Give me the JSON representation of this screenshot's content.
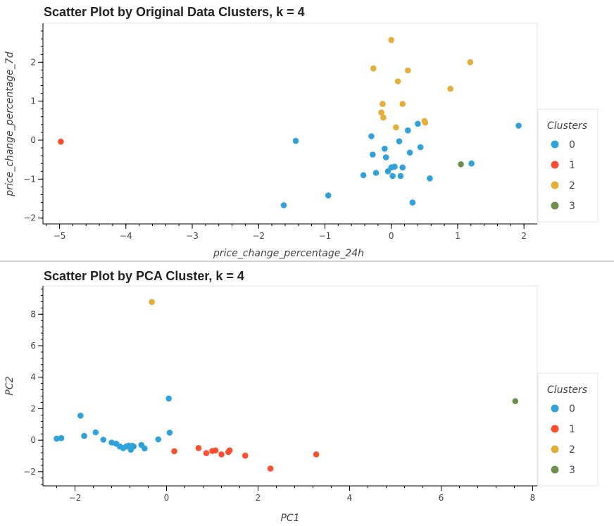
{
  "chart_data": [
    {
      "type": "scatter",
      "title": "Scatter Plot by Original Data Clusters, k = 4",
      "xlabel": "price_change_percentage_24h",
      "ylabel": "price_change_percentage_7d",
      "xlim": [
        -5.25,
        2.2
      ],
      "ylim": [
        -2.15,
        3.0
      ],
      "xticks": [
        -5,
        -4,
        -3,
        -2,
        -1,
        0,
        1,
        2
      ],
      "yticks": [
        -2,
        -1,
        0,
        1,
        2
      ],
      "grid": false,
      "legend": {
        "title": "Clusters",
        "placement": "right"
      },
      "series": [
        {
          "name": "0",
          "color": "#30a2da",
          "points": [
            [
              -1.62,
              -1.67
            ],
            [
              -1.44,
              -0.02
            ],
            [
              -0.95,
              -1.42
            ],
            [
              -0.42,
              -0.9
            ],
            [
              -0.3,
              0.1
            ],
            [
              -0.28,
              -0.37
            ],
            [
              -0.23,
              -0.84
            ],
            [
              -0.1,
              -0.22
            ],
            [
              -0.08,
              -0.44
            ],
            [
              -0.05,
              -0.8
            ],
            [
              0.0,
              -0.7
            ],
            [
              0.02,
              -0.92
            ],
            [
              0.05,
              -0.68
            ],
            [
              0.12,
              -0.03
            ],
            [
              0.14,
              -0.92
            ],
            [
              0.17,
              -0.7
            ],
            [
              0.25,
              0.25
            ],
            [
              0.28,
              -0.32
            ],
            [
              0.32,
              -1.6
            ],
            [
              0.4,
              0.42
            ],
            [
              0.44,
              -0.18
            ],
            [
              0.58,
              -0.98
            ],
            [
              1.21,
              -0.6
            ],
            [
              1.92,
              0.37
            ]
          ]
        },
        {
          "name": "1",
          "color": "#fc4f30",
          "points": [
            [
              -4.98,
              -0.04
            ]
          ]
        },
        {
          "name": "2",
          "color": "#e5ae38",
          "points": [
            [
              -0.27,
              1.84
            ],
            [
              -0.15,
              0.71
            ],
            [
              -0.13,
              0.93
            ],
            [
              -0.12,
              0.58
            ],
            [
              0.0,
              2.57
            ],
            [
              0.07,
              0.33
            ],
            [
              0.1,
              1.51
            ],
            [
              0.17,
              0.93
            ],
            [
              0.25,
              1.79
            ],
            [
              0.5,
              0.49
            ],
            [
              0.51,
              0.45
            ],
            [
              0.89,
              1.32
            ],
            [
              1.19,
              2.0
            ]
          ]
        },
        {
          "name": "3",
          "color": "#6d904f",
          "points": [
            [
              1.05,
              -0.62
            ]
          ]
        }
      ]
    },
    {
      "type": "scatter",
      "title": "Scatter Plot by PCA Cluster, k = 4",
      "xlabel": "PC1",
      "ylabel": "PC2",
      "xlim": [
        -2.7,
        8.1
      ],
      "ylim": [
        -2.9,
        9.8
      ],
      "xticks": [
        -2,
        0,
        2,
        4,
        6,
        8
      ],
      "yticks": [
        -2,
        0,
        2,
        4,
        6,
        8
      ],
      "grid": false,
      "legend": {
        "title": "Clusters",
        "placement": "right"
      },
      "series": [
        {
          "name": "0",
          "color": "#30a2da",
          "points": [
            [
              -2.4,
              0.1
            ],
            [
              -2.3,
              0.13
            ],
            [
              -1.88,
              1.56
            ],
            [
              -1.8,
              0.27
            ],
            [
              -1.55,
              0.5
            ],
            [
              -1.38,
              0.03
            ],
            [
              -1.2,
              -0.15
            ],
            [
              -1.1,
              -0.22
            ],
            [
              -1.02,
              -0.4
            ],
            [
              -0.95,
              -0.5
            ],
            [
              -0.88,
              -0.4
            ],
            [
              -0.83,
              -0.35
            ],
            [
              -0.78,
              -0.6
            ],
            [
              -0.75,
              -0.35
            ],
            [
              -0.72,
              -0.4
            ],
            [
              -0.55,
              -0.3
            ],
            [
              -0.48,
              -0.52
            ],
            [
              -0.18,
              0.05
            ],
            [
              0.05,
              2.65
            ],
            [
              0.07,
              0.48
            ]
          ]
        },
        {
          "name": "1",
          "color": "#fc4f30",
          "points": [
            [
              0.17,
              -0.7
            ],
            [
              0.7,
              -0.5
            ],
            [
              0.87,
              -0.82
            ],
            [
              1.0,
              -0.68
            ],
            [
              1.07,
              -0.65
            ],
            [
              1.2,
              -0.9
            ],
            [
              1.35,
              -0.75
            ],
            [
              1.38,
              -0.65
            ],
            [
              1.72,
              -0.98
            ],
            [
              2.27,
              -1.8
            ],
            [
              3.27,
              -0.9
            ]
          ]
        },
        {
          "name": "2",
          "color": "#e5ae38",
          "points": [
            [
              -0.32,
              8.78
            ]
          ]
        },
        {
          "name": "3",
          "color": "#6d904f",
          "points": [
            [
              7.62,
              2.48
            ]
          ]
        }
      ]
    }
  ]
}
